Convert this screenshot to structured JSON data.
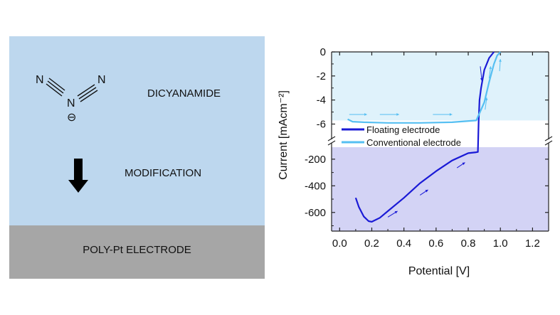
{
  "scheme": {
    "atom_n1": "N",
    "atom_n_center": "N",
    "atom_n2": "N",
    "charge_symbol": "⊖",
    "compound_label": "DICYANAMIDE",
    "step_label": "MODIFICATION",
    "electrode_label": "POLY-Pt ELECTRODE",
    "colors": {
      "modification_bg": "#bdd7ee",
      "electrode_bg": "#a6a6a6",
      "arrow": "#000000"
    },
    "icons": {
      "step_arrow": "down-arrow-icon"
    }
  },
  "chart_data": {
    "type": "line",
    "xlabel": "Potential [V]",
    "ylabel": "Current [mAcm⁻²]",
    "xlim": [
      -0.05,
      1.3
    ],
    "x_ticks": [
      0.0,
      0.2,
      0.4,
      0.6,
      0.8,
      1.0,
      1.2
    ],
    "x_tick_labels": [
      "0.0",
      "0.2",
      "0.4",
      "0.6",
      "0.8",
      "1.0",
      "1.2"
    ],
    "axis_break": true,
    "upper_panel": {
      "ylim": [
        -6.8,
        0
      ],
      "y_ticks": [
        0,
        -2,
        -4,
        -6
      ],
      "y_tick_labels": [
        "0",
        "-2",
        "-4",
        "-6"
      ],
      "background": "#dff2fb",
      "shaded_y_range": [
        -5.7,
        0
      ]
    },
    "lower_panel": {
      "ylim": [
        -740,
        -110
      ],
      "y_ticks": [
        -200,
        -400,
        -600
      ],
      "y_tick_labels": [
        "-200",
        "-400",
        "-600"
      ],
      "background": "#d3d3f5",
      "shaded_y_range": [
        -740,
        -110
      ]
    },
    "legend_position": "lower-left of upper panel",
    "series": [
      {
        "name": "Floating electrode",
        "color": "#1a1ad6",
        "points": [
          [
            0.1,
            -490
          ],
          [
            0.12,
            -560
          ],
          [
            0.15,
            -630
          ],
          [
            0.18,
            -665
          ],
          [
            0.2,
            -670
          ],
          [
            0.25,
            -640
          ],
          [
            0.3,
            -590
          ],
          [
            0.4,
            -490
          ],
          [
            0.5,
            -380
          ],
          [
            0.6,
            -290
          ],
          [
            0.7,
            -210
          ],
          [
            0.8,
            -155
          ],
          [
            0.85,
            -148
          ],
          [
            0.86,
            -146
          ],
          [
            0.865,
            -5.7
          ],
          [
            0.87,
            -4.0
          ],
          [
            0.88,
            -3.0
          ],
          [
            0.9,
            -1.5
          ],
          [
            0.93,
            -0.5
          ],
          [
            0.96,
            0
          ]
        ]
      },
      {
        "name": "Conventional electrode",
        "color": "#55bff2",
        "points": [
          [
            0.05,
            -5.6
          ],
          [
            0.08,
            -5.8
          ],
          [
            0.15,
            -5.85
          ],
          [
            0.3,
            -5.9
          ],
          [
            0.5,
            -5.9
          ],
          [
            0.7,
            -5.85
          ],
          [
            0.85,
            -5.7
          ],
          [
            0.9,
            -4.2
          ],
          [
            0.93,
            -2.5
          ],
          [
            0.96,
            -1.0
          ],
          [
            0.98,
            -0.3
          ],
          [
            1.0,
            0
          ]
        ]
      }
    ],
    "annotations": [
      "scan-direction arrows along both curves"
    ]
  }
}
